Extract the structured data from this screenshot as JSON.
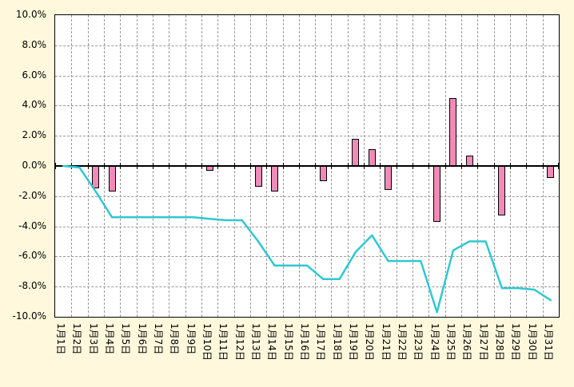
{
  "page": {
    "background": "#fff8dc"
  },
  "chart_data": {
    "type": "bar",
    "title": "",
    "legend": "none",
    "grid": "dashed",
    "plot_background": "#ffffff",
    "page_background": "#fff8dc",
    "axis_color": "#000000",
    "gridline_color": "#9a9a9a",
    "ylim": [
      -10,
      10
    ],
    "ytick_step": 2,
    "ytick_labels": [
      "10.0%",
      "8.0%",
      "6.0%",
      "4.0%",
      "2.0%",
      "0.0%",
      "-2.0%",
      "-4.0%",
      "-6.0%",
      "-8.0%",
      "-10.0%"
    ],
    "categories": [
      "1月1日",
      "1月2日",
      "1月3日",
      "1月4日",
      "1月5日",
      "1月6日",
      "1月7日",
      "1月8日",
      "1月9日",
      "1月10日",
      "1月11日",
      "1月12日",
      "1月13日",
      "1月14日",
      "1月15日",
      "1月16日",
      "1月17日",
      "1月18日",
      "1月19日",
      "1月20日",
      "1月21日",
      "1月22日",
      "1月23日",
      "1月24日",
      "1月25日",
      "1月26日",
      "1月27日",
      "1月28日",
      "1月29日",
      "1月30日",
      "1月31日"
    ],
    "series": [
      {
        "name": "daily-change-bars",
        "type": "bar",
        "color": "#f28ab8",
        "border_color": "#000000",
        "values": [
          0,
          0,
          -1.5,
          -1.7,
          0,
          0,
          0,
          0,
          0,
          -0.3,
          0,
          0,
          -1.4,
          -1.7,
          0,
          0,
          -1.0,
          0,
          1.8,
          1.1,
          -1.6,
          0,
          0,
          -3.7,
          4.5,
          0.7,
          0,
          -3.3,
          0,
          0,
          -0.8
        ]
      },
      {
        "name": "cumulative-change-line",
        "type": "line",
        "color": "#2fc8d2",
        "values": [
          0,
          -0.1,
          -1.7,
          -3.4,
          -3.4,
          -3.4,
          -3.4,
          -3.4,
          -3.4,
          -3.5,
          -3.6,
          -3.6,
          -5.0,
          -6.6,
          -6.6,
          -6.6,
          -7.5,
          -7.5,
          -5.7,
          -4.6,
          -6.3,
          -6.3,
          -6.3,
          -9.7,
          -5.6,
          -5.0,
          -5.0,
          -8.1,
          -8.1,
          -8.2,
          -8.9
        ]
      }
    ]
  }
}
